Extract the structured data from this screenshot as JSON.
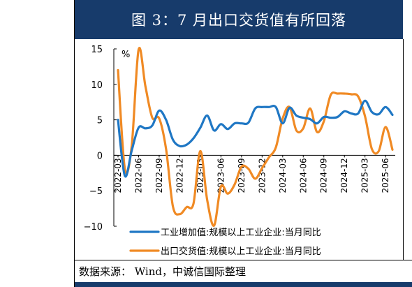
{
  "title": "图 3：7 月出口交货值有所回落",
  "source": "数据来源： Wind，中诚信国际整理",
  "chart_data": {
    "type": "line",
    "unit_label": "%",
    "ylim": [
      -10,
      15
    ],
    "yticks": [
      "15",
      "10",
      "5",
      "0",
      "-5",
      "-10"
    ],
    "x": [
      "2022-03",
      "2022-04",
      "2022-05",
      "2022-06",
      "2022-07",
      "2022-08",
      "2022-09",
      "2022-10",
      "2022-11",
      "2022-12",
      "2023-01",
      "2023-02",
      "2023-03",
      "2023-04",
      "2023-05",
      "2023-06",
      "2023-07",
      "2023-08",
      "2023-09",
      "2023-10",
      "2023-11",
      "2023-12",
      "2024-01",
      "2024-02",
      "2024-03",
      "2024-04",
      "2024-05",
      "2024-06",
      "2024-07",
      "2024-08",
      "2024-09",
      "2024-10",
      "2024-11",
      "2024-12",
      "2025-01",
      "2025-02",
      "2025-03",
      "2025-04",
      "2025-05",
      "2025-06",
      "2025-07"
    ],
    "xtick_labels": [
      "2022-03",
      "2022-06",
      "2022-09",
      "2022-12",
      "2023-03",
      "2023-06",
      "2023-09",
      "2023-12",
      "2024-03",
      "2024-06",
      "2024-09",
      "2024-12",
      "2025-03",
      "2025-06"
    ],
    "series": [
      {
        "name": "工业增加值:规模以上工业企业:当月同比",
        "color": "#1f77c4",
        "values": [
          5.0,
          -2.9,
          0.7,
          3.9,
          3.8,
          4.2,
          6.3,
          5.0,
          2.2,
          1.3,
          1.5,
          2.4,
          3.9,
          5.6,
          3.5,
          4.4,
          3.7,
          4.5,
          4.5,
          4.6,
          6.6,
          6.8,
          6.8,
          6.8,
          4.5,
          6.7,
          5.6,
          5.3,
          5.1,
          4.5,
          5.4,
          5.3,
          5.4,
          6.2,
          5.9,
          5.9,
          7.7,
          6.1,
          5.8,
          6.8,
          5.7
        ]
      },
      {
        "name": "出口交货值:规模以上工业企业:当月同比",
        "color": "#f08a24",
        "values": [
          12.0,
          -1.9,
          1.4,
          14.9,
          9.7,
          5.3,
          5.2,
          0.9,
          -7.2,
          -8.3,
          -7.3,
          -6.8,
          0.6,
          -6.3,
          -9.9,
          -4.4,
          -5.4,
          -4.1,
          -1.6,
          -1.9,
          -3.3,
          -1.8,
          -0.3,
          1.1,
          5.2,
          6.8,
          3.5,
          3.8,
          6.6,
          3.3,
          4.8,
          8.5,
          8.7,
          8.7,
          8.6,
          8.3,
          5.5,
          0.9,
          0.6,
          4.0,
          0.8
        ]
      }
    ],
    "legend_position": "bottom-right",
    "grid": false
  }
}
